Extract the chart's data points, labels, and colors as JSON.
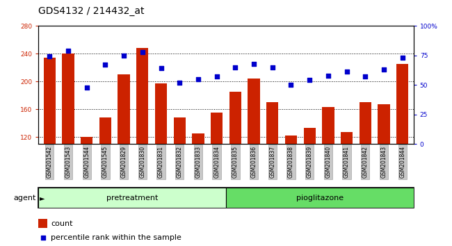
{
  "title": "GDS4132 / 214432_at",
  "categories": [
    "GSM201542",
    "GSM201543",
    "GSM201544",
    "GSM201545",
    "GSM201829",
    "GSM201830",
    "GSM201831",
    "GSM201832",
    "GSM201833",
    "GSM201834",
    "GSM201835",
    "GSM201836",
    "GSM201837",
    "GSM201838",
    "GSM201839",
    "GSM201840",
    "GSM201841",
    "GSM201842",
    "GSM201843",
    "GSM201844"
  ],
  "bar_values": [
    234,
    240,
    120,
    148,
    210,
    248,
    197,
    148,
    125,
    155,
    185,
    204,
    170,
    122,
    133,
    163,
    127,
    170,
    167,
    225
  ],
  "dot_values": [
    74,
    79,
    48,
    67,
    75,
    78,
    64,
    52,
    55,
    57,
    65,
    68,
    65,
    50,
    54,
    58,
    61,
    57,
    63,
    73
  ],
  "ylim_left": [
    110,
    280
  ],
  "ylim_right": [
    0,
    100
  ],
  "yticks_left": [
    120,
    160,
    200,
    240,
    280
  ],
  "yticks_right": [
    0,
    25,
    50,
    75,
    100
  ],
  "ytick_right_labels": [
    "0",
    "25",
    "50",
    "75",
    "100%"
  ],
  "bar_color": "#cc2200",
  "dot_color": "#0000cc",
  "group1_label": "pretreatment",
  "group2_label": "pioglitazone",
  "n_pretreatment": 10,
  "n_pioglitazone": 10,
  "agent_label": "agent",
  "legend_bar_label": "count",
  "legend_dot_label": "percentile rank within the sample",
  "pretreatment_color": "#ccffcc",
  "pioglitazone_color": "#66dd66",
  "title_fontsize": 10,
  "tick_fontsize": 6.5,
  "agent_fontsize": 8,
  "legend_fontsize": 8
}
